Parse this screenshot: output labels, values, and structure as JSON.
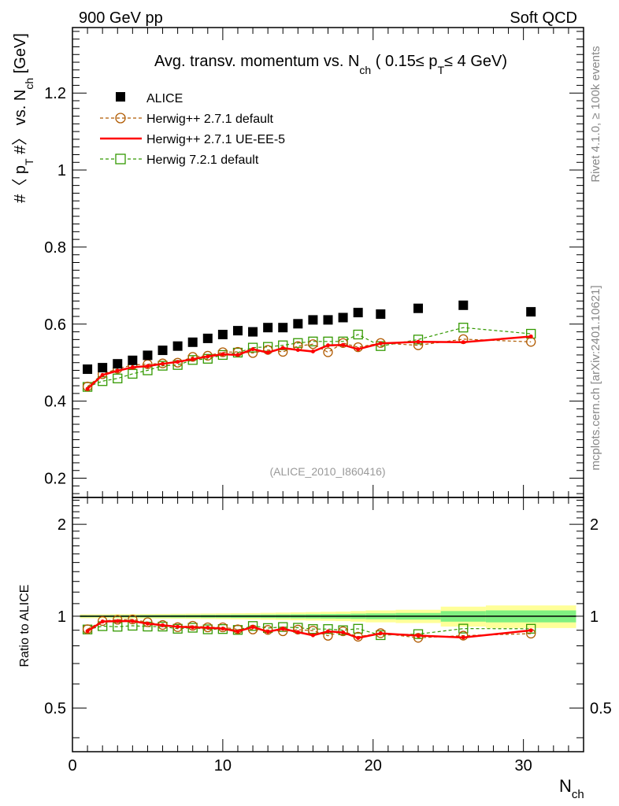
{
  "header": {
    "left": "900 GeV pp",
    "right": "Soft QCD"
  },
  "side_labels": {
    "rivet": "Rivet 4.1.0, ≥ 100k events",
    "mcplots": "mcplots.cern.ch [arXiv:2401.10621]"
  },
  "colors": {
    "alice": "#000000",
    "herwig_default": "#b05a00",
    "herwig_ueee5": "#ff0000",
    "herwig7": "#339900",
    "band_inner": "#80f080",
    "band_outer": "#ffff99"
  },
  "chart_data": [
    {
      "type": "scatter",
      "panel": "main",
      "title": "Avg. transv. momentum vs. N_ch ( 0.15≤ p_T ≤ 4 GeV)",
      "title_parts": {
        "pre": "Avg. transv. momentum vs. N",
        "sub1": "ch",
        "mid": " ( 0.15≤ p",
        "sub2": "T",
        "post": "≤ 4 GeV)"
      },
      "ylabel": "#〈 p_T #〉 vs. N_ch [GeV]",
      "ylabel_parts": {
        "a": "#〈 p",
        "b": "T",
        "c": " #〉 vs. N",
        "d": "ch",
        "e": " [GeV]"
      },
      "xlabel": "N_ch",
      "xlabel_parts": {
        "main": "N",
        "sub": "ch"
      },
      "xlim": [
        0,
        34
      ],
      "ylim": [
        0.15,
        1.37
      ],
      "yticks": [
        0.2,
        0.4,
        0.6,
        0.8,
        1,
        1.2
      ],
      "ytick_labels": [
        "0.2",
        "0.4",
        "0.6",
        "0.8",
        "1",
        "1.2"
      ],
      "watermark": "(ALICE_2010_I860416)",
      "legend": {
        "position": "top-left",
        "entries": [
          "ALICE",
          "Herwig++ 2.7.1 default",
          "Herwig++ 2.7.1 UE-EE-5",
          "Herwig 7.2.1 default"
        ]
      },
      "series": [
        {
          "name": "ALICE",
          "marker": "square-filled",
          "x": [
            1,
            2,
            3,
            4,
            5,
            6,
            7,
            8,
            9,
            10,
            11,
            12,
            13,
            14,
            15,
            16,
            17,
            18,
            19,
            20.5,
            23,
            26,
            30.5
          ],
          "values": [
            0.483,
            0.487,
            0.497,
            0.506,
            0.519,
            0.532,
            0.543,
            0.553,
            0.563,
            0.573,
            0.583,
            0.58,
            0.591,
            0.591,
            0.601,
            0.611,
            0.611,
            0.617,
            0.63,
            0.626,
            0.641,
            0.649,
            0.632
          ]
        },
        {
          "name": "Herwig++ 2.7.1 default",
          "marker": "circle-open",
          "line": "dashed",
          "x": [
            1,
            2,
            3,
            4,
            5,
            6,
            7,
            8,
            9,
            10,
            11,
            12,
            13,
            14,
            15,
            16,
            17,
            18,
            19,
            20.5,
            23,
            26,
            30.5
          ],
          "values": [
            0.438,
            0.47,
            0.484,
            0.494,
            0.496,
            0.498,
            0.5,
            0.515,
            0.518,
            0.527,
            0.528,
            0.525,
            0.533,
            0.528,
            0.543,
            0.548,
            0.527,
            0.551,
            0.54,
            0.551,
            0.545,
            0.561,
            0.554
          ]
        },
        {
          "name": "Herwig++ 2.7.1 UE-EE-5",
          "marker": "dot",
          "line": "solid",
          "x": [
            1,
            2,
            3,
            4,
            5,
            6,
            7,
            8,
            9,
            10,
            11,
            12,
            13,
            14,
            15,
            16,
            17,
            18,
            19,
            20.5,
            23,
            26,
            30.5
          ],
          "values": [
            0.432,
            0.468,
            0.479,
            0.488,
            0.491,
            0.497,
            0.502,
            0.509,
            0.516,
            0.522,
            0.52,
            0.535,
            0.526,
            0.538,
            0.533,
            0.529,
            0.545,
            0.546,
            0.535,
            0.55,
            0.554,
            0.553,
            0.568
          ]
        },
        {
          "name": "Herwig 7.2.1 default",
          "marker": "square-open",
          "line": "dashed",
          "x": [
            1,
            2,
            3,
            4,
            5,
            6,
            7,
            8,
            9,
            10,
            11,
            12,
            13,
            14,
            15,
            16,
            17,
            18,
            19,
            20.5,
            23,
            26,
            30.5
          ],
          "values": [
            0.437,
            0.452,
            0.459,
            0.471,
            0.48,
            0.492,
            0.494,
            0.507,
            0.51,
            0.52,
            0.526,
            0.539,
            0.541,
            0.545,
            0.551,
            0.555,
            0.555,
            0.555,
            0.573,
            0.543,
            0.56,
            0.591,
            0.575
          ]
        }
      ]
    },
    {
      "type": "scatter",
      "panel": "ratio",
      "ylabel": "Ratio to ALICE",
      "xlabel": "N_ch",
      "xlim": [
        0,
        34
      ],
      "ylim": [
        0.36,
        2.45
      ],
      "yscale": "log",
      "yticks": [
        0.5,
        1,
        2
      ],
      "ytick_labels": [
        "0.5",
        "1",
        "2"
      ],
      "xticks": [
        0,
        10,
        20,
        30
      ],
      "xtick_labels": [
        "0",
        "10",
        "20",
        "30"
      ],
      "uncertainty_band": {
        "x_edges": [
          0.5,
          1.5,
          2.5,
          3.5,
          4.5,
          5.5,
          6.5,
          7.5,
          8.5,
          9.5,
          10.5,
          11.5,
          12.5,
          13.5,
          14.5,
          15.5,
          16.5,
          17.5,
          18.5,
          19.5,
          21.5,
          24.5,
          27.5,
          33.5
        ],
        "inner_halfwidth": [
          0.007,
          0.007,
          0.008,
          0.008,
          0.009,
          0.009,
          0.01,
          0.01,
          0.011,
          0.011,
          0.012,
          0.012,
          0.013,
          0.014,
          0.015,
          0.016,
          0.017,
          0.018,
          0.02,
          0.022,
          0.025,
          0.04,
          0.045
        ],
        "outer_halfwidth": [
          0.015,
          0.015,
          0.016,
          0.016,
          0.017,
          0.018,
          0.019,
          0.02,
          0.021,
          0.022,
          0.023,
          0.024,
          0.026,
          0.028,
          0.03,
          0.032,
          0.034,
          0.036,
          0.04,
          0.045,
          0.05,
          0.075,
          0.085
        ]
      },
      "series": [
        {
          "name": "Herwig++ 2.7.1 default",
          "marker": "circle-open",
          "line": "dashed",
          "x": [
            1,
            2,
            3,
            4,
            5,
            6,
            7,
            8,
            9,
            10,
            11,
            12,
            13,
            14,
            15,
            16,
            17,
            18,
            19,
            20.5,
            23,
            26,
            30.5
          ],
          "values": [
            0.907,
            0.965,
            0.974,
            0.976,
            0.956,
            0.936,
            0.921,
            0.931,
            0.92,
            0.92,
            0.906,
            0.905,
            0.902,
            0.893,
            0.904,
            0.897,
            0.863,
            0.893,
            0.857,
            0.88,
            0.85,
            0.864,
            0.877
          ]
        },
        {
          "name": "Herwig++ 2.7.1 UE-EE-5",
          "marker": "dot",
          "line": "solid",
          "x": [
            1,
            2,
            3,
            4,
            5,
            6,
            7,
            8,
            9,
            10,
            11,
            12,
            13,
            14,
            15,
            16,
            17,
            18,
            19,
            20.5,
            23,
            26,
            30.5
          ],
          "values": [
            0.894,
            0.961,
            0.964,
            0.964,
            0.946,
            0.934,
            0.924,
            0.92,
            0.917,
            0.911,
            0.892,
            0.922,
            0.89,
            0.91,
            0.887,
            0.866,
            0.892,
            0.885,
            0.849,
            0.879,
            0.864,
            0.852,
            0.899
          ]
        },
        {
          "name": "Herwig 7.2.1 default",
          "marker": "square-open",
          "line": "dashed",
          "x": [
            1,
            2,
            3,
            4,
            5,
            6,
            7,
            8,
            9,
            10,
            11,
            12,
            13,
            14,
            15,
            16,
            17,
            18,
            19,
            20.5,
            23,
            26,
            30.5
          ],
          "values": [
            0.905,
            0.928,
            0.924,
            0.931,
            0.925,
            0.925,
            0.91,
            0.917,
            0.906,
            0.908,
            0.902,
            0.929,
            0.915,
            0.922,
            0.917,
            0.908,
            0.908,
            0.9,
            0.91,
            0.867,
            0.874,
            0.911,
            0.91
          ]
        }
      ]
    }
  ]
}
